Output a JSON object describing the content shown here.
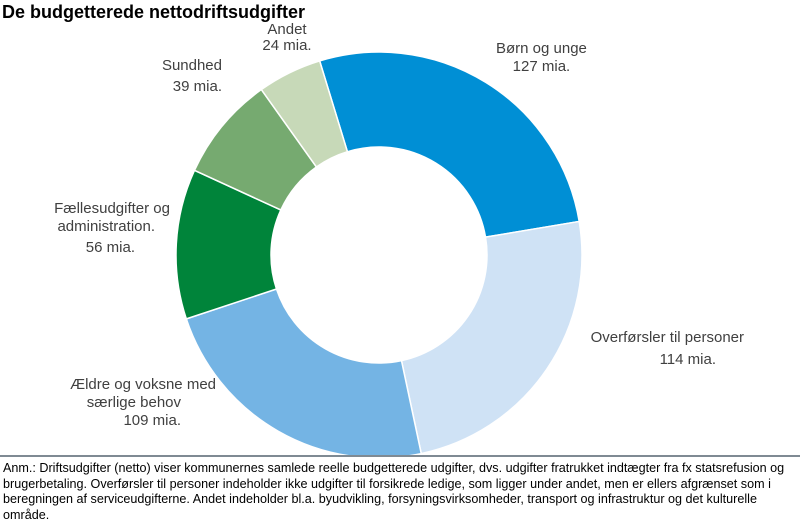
{
  "chart_data": {
    "type": "pie",
    "variant": "donut",
    "title": "De budgetterede nettodriftsudgifter",
    "unit": "mia.",
    "slices": [
      {
        "name": "Børn og unge",
        "value": 127,
        "label": "127 mia.",
        "color": "#008FD5"
      },
      {
        "name": "Overførsler til personer",
        "value": 114,
        "label": "114 mia.",
        "color": "#CFE2F5"
      },
      {
        "name": "Ældre og voksne med særlige behov",
        "value": 109,
        "label": "109 mia.",
        "color": "#74B4E4"
      },
      {
        "name": "Fællesudgifter og administration.",
        "value": 56,
        "label": "56 mia.",
        "color": "#00843A"
      },
      {
        "name": "Sundhed",
        "value": 39,
        "label": "39 mia.",
        "color": "#76AA70"
      },
      {
        "name": "Andet",
        "value": 24,
        "label": "24 mia.",
        "color": "#C7D9B8"
      }
    ],
    "legend": "none"
  },
  "label_lines": [
    [
      "Børn og unge",
      "127 mia."
    ],
    [
      "Overførsler til personer",
      "114 mia."
    ],
    [
      "Ældre og voksne med",
      "særlige behov",
      "109 mia."
    ],
    [
      "Fællesudgifter og",
      "administration.",
      "56 mia."
    ],
    [
      "Sundhed",
      "39 mia."
    ],
    [
      "Andet",
      "24 mia."
    ]
  ],
  "note": "Anm.: Driftsudgifter (netto) viser kommunernes samlede reelle budgetterede udgifter, dvs. udgifter fratrukket indtægter fra fx statsrefusion og brugerbetaling. Overførsler til personer indeholder ikke udgifter til forsikrede ledige, som ligger under andet, men er ellers afgrænset som i beregningen af serviceudgifterne. Andet indeholder bl.a. byudvikling, forsyningsvirksomheder, transport og infrastruktur og det kulturelle område."
}
